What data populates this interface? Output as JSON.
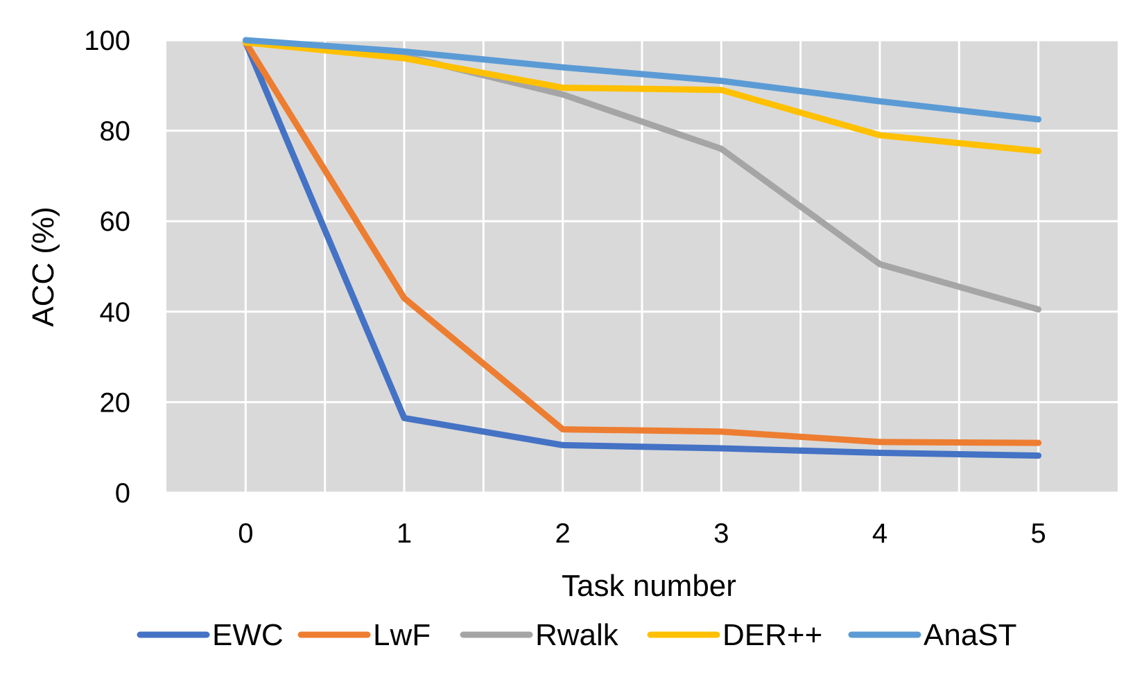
{
  "chart_data": {
    "type": "line",
    "title": "",
    "xlabel": "Task number",
    "ylabel": "ACC (%)",
    "x": [
      0,
      1,
      2,
      3,
      4,
      5
    ],
    "x_tick_labels": [
      "0",
      "1",
      "2",
      "3",
      "4",
      "5"
    ],
    "ylim": [
      0,
      100
    ],
    "y_ticks": [
      0,
      20,
      40,
      60,
      80,
      100
    ],
    "y_tick_labels": [
      "0",
      "20",
      "40",
      "60",
      "80",
      "100"
    ],
    "grid": true,
    "legend_position": "bottom",
    "series": [
      {
        "name": "EWC",
        "color": "#4472C4",
        "values": [
          99.5,
          16.5,
          10.5,
          9.8,
          8.8,
          8.2
        ]
      },
      {
        "name": "LwF",
        "color": "#ED7D31",
        "values": [
          99.5,
          43.0,
          14.0,
          13.5,
          11.2,
          11.0
        ]
      },
      {
        "name": "Rwalk",
        "color": "#A5A5A5",
        "values": [
          99.5,
          96.5,
          88.0,
          76.0,
          50.5,
          40.5
        ]
      },
      {
        "name": "DER++",
        "color": "#FFC000",
        "values": [
          99.5,
          96.0,
          89.5,
          89.0,
          79.0,
          75.5
        ]
      },
      {
        "name": "AnaST",
        "color": "#5B9BD5",
        "values": [
          100.0,
          97.5,
          94.0,
          91.0,
          86.5,
          82.5
        ]
      }
    ]
  }
}
